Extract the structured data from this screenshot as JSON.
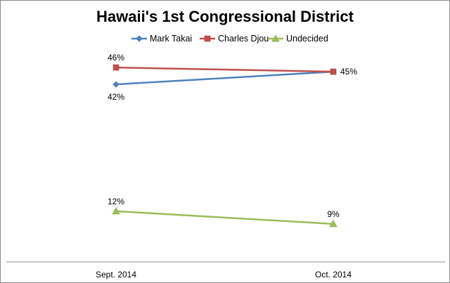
{
  "chart_data": {
    "type": "line",
    "title": "Hawaii's 1st Congressional District",
    "xlabel": "",
    "ylabel": "",
    "categories": [
      "Sept. 2014",
      "Oct. 2014"
    ],
    "ylim": [
      0,
      50
    ],
    "grid": false,
    "legend_position": "top",
    "series": [
      {
        "name": "Mark Takai",
        "values": [
          42,
          45
        ],
        "color": "#4f81bd",
        "marker": "diamond",
        "labels": [
          "42%",
          ""
        ]
      },
      {
        "name": "Charles Djou",
        "values": [
          46,
          45
        ],
        "color": "#c0504d",
        "marker": "square",
        "labels": [
          "46%",
          "45%"
        ]
      },
      {
        "name": "Undecided",
        "values": [
          12,
          9
        ],
        "color": "#9bbb59",
        "marker": "triangle",
        "labels": [
          "12%",
          "9%"
        ]
      }
    ]
  }
}
